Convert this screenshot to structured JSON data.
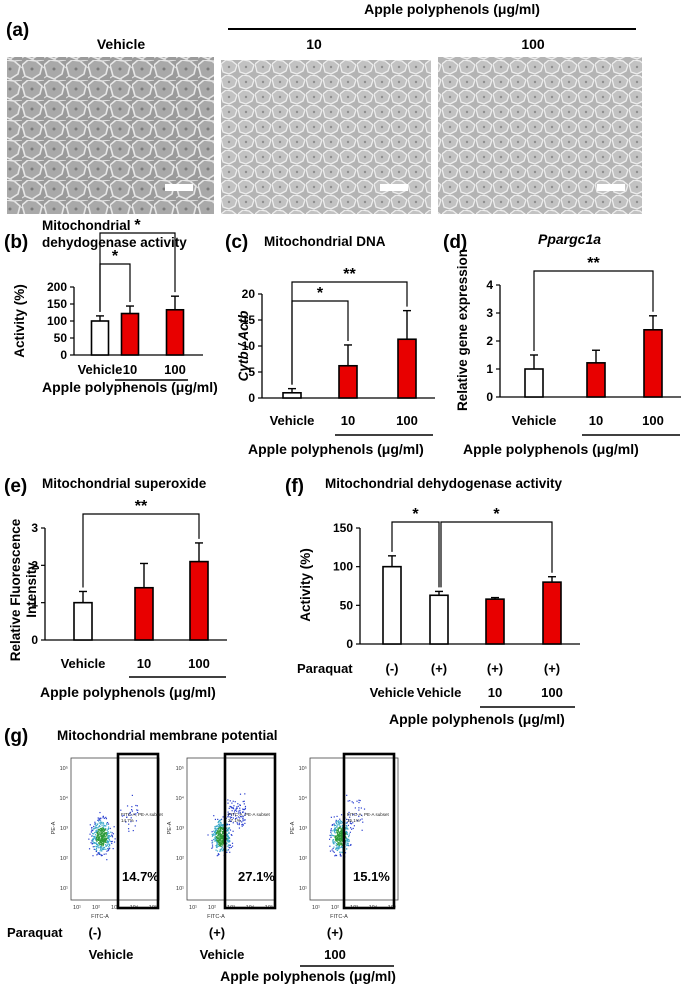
{
  "panel_letters": {
    "a": "(a)",
    "b": "(b)",
    "c": "(c)",
    "d": "(d)",
    "e": "(e)",
    "f": "(f)",
    "g": "(g)"
  },
  "labels": {
    "vehicle": "Vehicle",
    "apple_polyphenols": "Apple polyphenols (μg/ml)",
    "dose_10": "10",
    "dose_100": "100",
    "paraquat": "Paraquat",
    "neg": "(-)",
    "pos": "(+)"
  },
  "panel_a": {
    "scale_bar_color": "#ffffff",
    "image_colors": [
      "#8f8f8f",
      "#b9b9b9"
    ]
  },
  "colors": {
    "treatment_bar": "#e80000",
    "vehicle_bar": "#ffffff",
    "outline": "#000000"
  },
  "chart_data": [
    {
      "id": "b",
      "type": "bar",
      "title": "Mitochondrial dehydogenase activity",
      "ylabel": "Activity (%)",
      "ylim": [
        0,
        200
      ],
      "yticks": [
        0,
        50,
        100,
        150,
        200
      ],
      "categories": [
        "Vehicle",
        "10",
        "100"
      ],
      "values": [
        100,
        122,
        133
      ],
      "errors": [
        15,
        22,
        40
      ],
      "bar_colors": [
        "white",
        "red",
        "red"
      ],
      "significance": [
        {
          "from": 0,
          "to": 1,
          "label": "*"
        },
        {
          "from": 0,
          "to": 2,
          "label": "*"
        }
      ],
      "group_label": "Apple polyphenols (μg/ml)"
    },
    {
      "id": "c",
      "type": "bar",
      "title": "Mitochondrial DNA",
      "ylabel": "Cytb / Actb",
      "ylim": [
        0,
        20
      ],
      "yticks": [
        0,
        5,
        10,
        15,
        20
      ],
      "categories": [
        "Vehicle",
        "10",
        "100"
      ],
      "values": [
        1,
        6.2,
        11.3
      ],
      "errors": [
        0.8,
        4,
        5.5
      ],
      "bar_colors": [
        "white",
        "red",
        "red"
      ],
      "significance": [
        {
          "from": 0,
          "to": 1,
          "label": "*"
        },
        {
          "from": 0,
          "to": 2,
          "label": "**"
        }
      ],
      "group_label": "Apple polyphenols (μg/ml)"
    },
    {
      "id": "d",
      "type": "bar",
      "title": "Ppargc1a",
      "ylabel": "Relative gene expression",
      "ylim": [
        0,
        4
      ],
      "yticks": [
        0,
        1,
        2,
        3,
        4
      ],
      "categories": [
        "Vehicle",
        "10",
        "100"
      ],
      "values": [
        1,
        1.22,
        2.4
      ],
      "errors": [
        0.5,
        0.45,
        0.5
      ],
      "bar_colors": [
        "white",
        "red",
        "red"
      ],
      "significance": [
        {
          "from": 0,
          "to": 2,
          "label": "**"
        }
      ],
      "group_label": "Apple polyphenols (μg/ml)"
    },
    {
      "id": "e",
      "type": "bar",
      "title": "Mitochondrial superoxide",
      "ylabel": "Relative Fluorescence Intensity",
      "ylim": [
        0,
        3
      ],
      "yticks": [
        0,
        1,
        2,
        3
      ],
      "categories": [
        "Vehicle",
        "10",
        "100"
      ],
      "values": [
        1,
        1.4,
        2.1
      ],
      "errors": [
        0.3,
        0.65,
        0.5
      ],
      "bar_colors": [
        "white",
        "red",
        "red"
      ],
      "significance": [
        {
          "from": 0,
          "to": 2,
          "label": "**"
        }
      ],
      "group_label": "Apple polyphenols (μg/ml)"
    },
    {
      "id": "f",
      "type": "bar",
      "title": "Mitochondrial dehydogenase activity",
      "ylabel": "Activity (%)",
      "ylim": [
        0,
        150
      ],
      "yticks": [
        0,
        50,
        100,
        150
      ],
      "categories": [
        "Vehicle",
        "Vehicle",
        "10",
        "100"
      ],
      "paraquat": [
        "(-)",
        "(+)",
        "(+)",
        "(+)"
      ],
      "values": [
        100,
        63,
        58,
        80
      ],
      "errors": [
        14,
        5,
        2,
        7
      ],
      "bar_colors": [
        "white",
        "white",
        "red",
        "red"
      ],
      "significance": [
        {
          "from": 0,
          "to": 1,
          "label": "*"
        },
        {
          "from": 1,
          "to": 3,
          "label": "*"
        }
      ],
      "group_label": "Apple polyphenols (μg/ml)"
    },
    {
      "id": "g",
      "type": "scatter",
      "title": "Mitochondrial membrane potential",
      "xlabel": "FITC-A",
      "ylabel": "PE-A",
      "tick_labels": [
        "10¹",
        "10²",
        "10³",
        "10⁴",
        "10⁵"
      ],
      "gate_label": "FITC-A, PE-A subset",
      "plots": [
        {
          "percent": "14.7%",
          "paraquat": "(-)",
          "treatment": "Vehicle"
        },
        {
          "percent": "27.1%",
          "paraquat": "(+)",
          "treatment": "Vehicle"
        },
        {
          "percent": "15.1%",
          "paraquat": "(+)",
          "treatment": "100"
        }
      ],
      "group_label": "Apple polyphenols (μg/ml)"
    }
  ]
}
